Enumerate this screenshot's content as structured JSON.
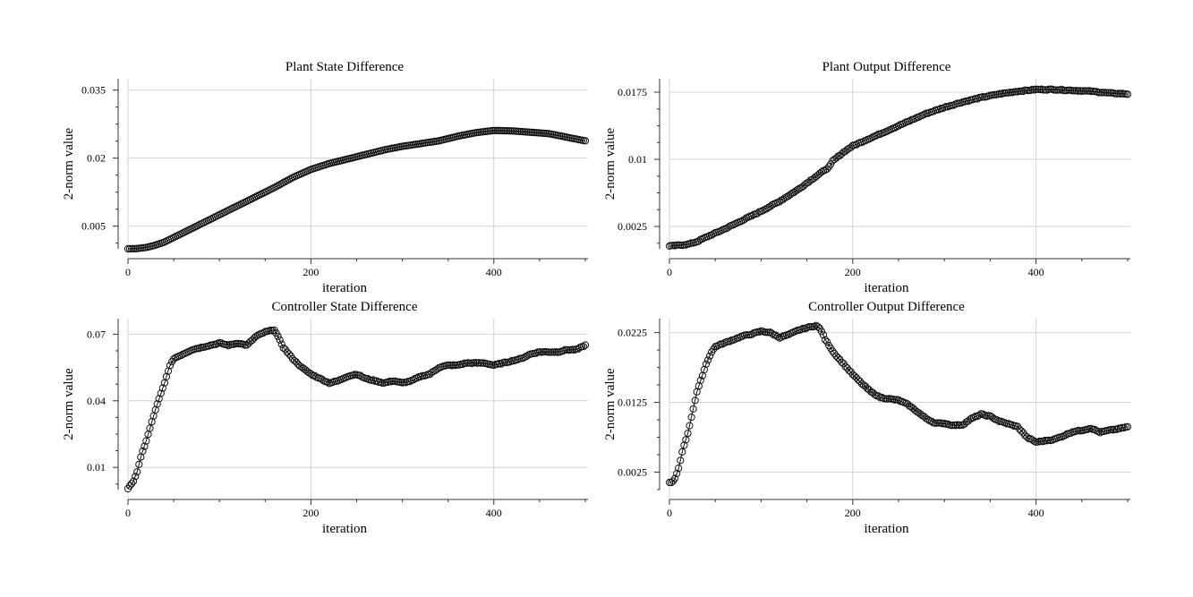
{
  "chart_data": [
    {
      "type": "line",
      "title": "Plant State Difference",
      "xlabel": "iteration",
      "ylabel": "2-norm value",
      "xlim": [
        0,
        500
      ],
      "ylim": [
        0.0,
        0.0375
      ],
      "xticks": [
        0,
        200,
        400
      ],
      "yticks": [
        0.005,
        0.02,
        0.035
      ],
      "ytick_labels": [
        "0.005",
        "0.02",
        "0.035"
      ],
      "grid": true,
      "marker": "open-circle",
      "points": [
        [
          0,
          0.0
        ],
        [
          10,
          5e-05
        ],
        [
          20,
          0.0003
        ],
        [
          30,
          0.0008
        ],
        [
          40,
          0.0015
        ],
        [
          50,
          0.0025
        ],
        [
          60,
          0.0035
        ],
        [
          70,
          0.0045
        ],
        [
          80,
          0.0055
        ],
        [
          100,
          0.0075
        ],
        [
          120,
          0.0095
        ],
        [
          140,
          0.0115
        ],
        [
          160,
          0.0135
        ],
        [
          180,
          0.0157
        ],
        [
          200,
          0.0175
        ],
        [
          220,
          0.0188
        ],
        [
          240,
          0.0198
        ],
        [
          260,
          0.0208
        ],
        [
          280,
          0.0218
        ],
        [
          300,
          0.0226
        ],
        [
          320,
          0.0232
        ],
        [
          340,
          0.0238
        ],
        [
          360,
          0.0248
        ],
        [
          380,
          0.0256
        ],
        [
          400,
          0.0261
        ],
        [
          420,
          0.026
        ],
        [
          440,
          0.0257
        ],
        [
          460,
          0.0254
        ],
        [
          480,
          0.0246
        ],
        [
          500,
          0.0238
        ]
      ]
    },
    {
      "type": "line",
      "title": "Plant Output Difference",
      "xlabel": "iteration",
      "ylabel": "2-norm value",
      "xlim": [
        0,
        500
      ],
      "ylim": [
        0.0,
        0.019
      ],
      "xticks": [
        0,
        200,
        400
      ],
      "yticks": [
        0.0025,
        0.01,
        0.0175
      ],
      "ytick_labels": [
        "0.0025",
        "0.01",
        "0.0175"
      ],
      "grid": true,
      "marker": "open-circle",
      "points": [
        [
          0,
          0.0003
        ],
        [
          10,
          0.0004
        ],
        [
          20,
          0.0005
        ],
        [
          30,
          0.0008
        ],
        [
          40,
          0.0013
        ],
        [
          60,
          0.0022
        ],
        [
          80,
          0.0032
        ],
        [
          100,
          0.0042
        ],
        [
          120,
          0.0053
        ],
        [
          140,
          0.0066
        ],
        [
          160,
          0.0081
        ],
        [
          175,
          0.0092
        ],
        [
          178,
          0.0098
        ],
        [
          190,
          0.0108
        ],
        [
          200,
          0.0115
        ],
        [
          220,
          0.0124
        ],
        [
          240,
          0.0133
        ],
        [
          260,
          0.0142
        ],
        [
          280,
          0.0151
        ],
        [
          300,
          0.0158
        ],
        [
          320,
          0.0164
        ],
        [
          340,
          0.0169
        ],
        [
          360,
          0.0173
        ],
        [
          380,
          0.0176
        ],
        [
          400,
          0.0178
        ],
        [
          420,
          0.0178
        ],
        [
          440,
          0.0177
        ],
        [
          460,
          0.0176
        ],
        [
          480,
          0.0174
        ],
        [
          500,
          0.0173
        ]
      ]
    },
    {
      "type": "line",
      "title": "Controller State Difference",
      "xlabel": "iteration",
      "ylabel": "2-norm value",
      "xlim": [
        0,
        500
      ],
      "ylim": [
        0.0,
        0.077
      ],
      "xticks": [
        0,
        200,
        400
      ],
      "yticks": [
        0.01,
        0.04,
        0.07
      ],
      "ytick_labels": [
        "0.01",
        "0.04",
        "0.07"
      ],
      "grid": true,
      "marker": "open-circle",
      "points": [
        [
          0,
          0.0005
        ],
        [
          5,
          0.003
        ],
        [
          10,
          0.008
        ],
        [
          15,
          0.016
        ],
        [
          20,
          0.022
        ],
        [
          25,
          0.029
        ],
        [
          30,
          0.036
        ],
        [
          35,
          0.042
        ],
        [
          40,
          0.048
        ],
        [
          45,
          0.055
        ],
        [
          50,
          0.059
        ],
        [
          60,
          0.061
        ],
        [
          70,
          0.063
        ],
        [
          80,
          0.064
        ],
        [
          90,
          0.065
        ],
        [
          100,
          0.066
        ],
        [
          110,
          0.065
        ],
        [
          120,
          0.066
        ],
        [
          130,
          0.065
        ],
        [
          140,
          0.069
        ],
        [
          150,
          0.071
        ],
        [
          160,
          0.072
        ],
        [
          165,
          0.068
        ],
        [
          170,
          0.064
        ],
        [
          180,
          0.059
        ],
        [
          190,
          0.055
        ],
        [
          200,
          0.052
        ],
        [
          210,
          0.05
        ],
        [
          220,
          0.048
        ],
        [
          230,
          0.049
        ],
        [
          240,
          0.051
        ],
        [
          250,
          0.052
        ],
        [
          260,
          0.05
        ],
        [
          270,
          0.049
        ],
        [
          280,
          0.048
        ],
        [
          290,
          0.049
        ],
        [
          300,
          0.048
        ],
        [
          310,
          0.049
        ],
        [
          320,
          0.051
        ],
        [
          330,
          0.052
        ],
        [
          340,
          0.055
        ],
        [
          350,
          0.056
        ],
        [
          360,
          0.056
        ],
        [
          370,
          0.057
        ],
        [
          380,
          0.057
        ],
        [
          390,
          0.057
        ],
        [
          400,
          0.056
        ],
        [
          410,
          0.057
        ],
        [
          420,
          0.058
        ],
        [
          430,
          0.059
        ],
        [
          440,
          0.061
        ],
        [
          450,
          0.062
        ],
        [
          460,
          0.062
        ],
        [
          470,
          0.062
        ],
        [
          480,
          0.063
        ],
        [
          490,
          0.063
        ],
        [
          500,
          0.065
        ]
      ]
    },
    {
      "type": "line",
      "title": "Controller Output Difference",
      "xlabel": "iteration",
      "ylabel": "2-norm value",
      "xlim": [
        0,
        500
      ],
      "ylim": [
        0.0,
        0.0245
      ],
      "xticks": [
        0,
        200,
        400
      ],
      "yticks": [
        0.0025,
        0.0125,
        0.0225
      ],
      "ytick_labels": [
        "0.0025",
        "0.0125",
        "0.0225"
      ],
      "grid": true,
      "marker": "open-circle",
      "points": [
        [
          0,
          0.001
        ],
        [
          5,
          0.0012
        ],
        [
          10,
          0.003
        ],
        [
          15,
          0.006
        ],
        [
          20,
          0.008
        ],
        [
          25,
          0.011
        ],
        [
          30,
          0.014
        ],
        [
          35,
          0.016
        ],
        [
          40,
          0.018
        ],
        [
          45,
          0.0195
        ],
        [
          50,
          0.0205
        ],
        [
          60,
          0.021
        ],
        [
          70,
          0.0215
        ],
        [
          80,
          0.022
        ],
        [
          90,
          0.0223
        ],
        [
          100,
          0.0227
        ],
        [
          110,
          0.0225
        ],
        [
          120,
          0.0218
        ],
        [
          130,
          0.0222
        ],
        [
          140,
          0.0228
        ],
        [
          150,
          0.0232
        ],
        [
          160,
          0.0235
        ],
        [
          165,
          0.023
        ],
        [
          170,
          0.0215
        ],
        [
          180,
          0.0195
        ],
        [
          190,
          0.018
        ],
        [
          200,
          0.0165
        ],
        [
          210,
          0.0152
        ],
        [
          220,
          0.014
        ],
        [
          230,
          0.0132
        ],
        [
          240,
          0.013
        ],
        [
          250,
          0.0128
        ],
        [
          260,
          0.0122
        ],
        [
          270,
          0.0112
        ],
        [
          280,
          0.0102
        ],
        [
          290,
          0.0095
        ],
        [
          300,
          0.0095
        ],
        [
          310,
          0.0092
        ],
        [
          320,
          0.0093
        ],
        [
          330,
          0.0102
        ],
        [
          340,
          0.0108
        ],
        [
          350,
          0.0105
        ],
        [
          360,
          0.0098
        ],
        [
          370,
          0.0094
        ],
        [
          380,
          0.009
        ],
        [
          390,
          0.0075
        ],
        [
          400,
          0.0068
        ],
        [
          410,
          0.007
        ],
        [
          420,
          0.0072
        ],
        [
          430,
          0.0077
        ],
        [
          440,
          0.0083
        ],
        [
          450,
          0.0085
        ],
        [
          460,
          0.0088
        ],
        [
          470,
          0.0082
        ],
        [
          480,
          0.0085
        ],
        [
          490,
          0.0087
        ],
        [
          500,
          0.009
        ]
      ]
    }
  ]
}
